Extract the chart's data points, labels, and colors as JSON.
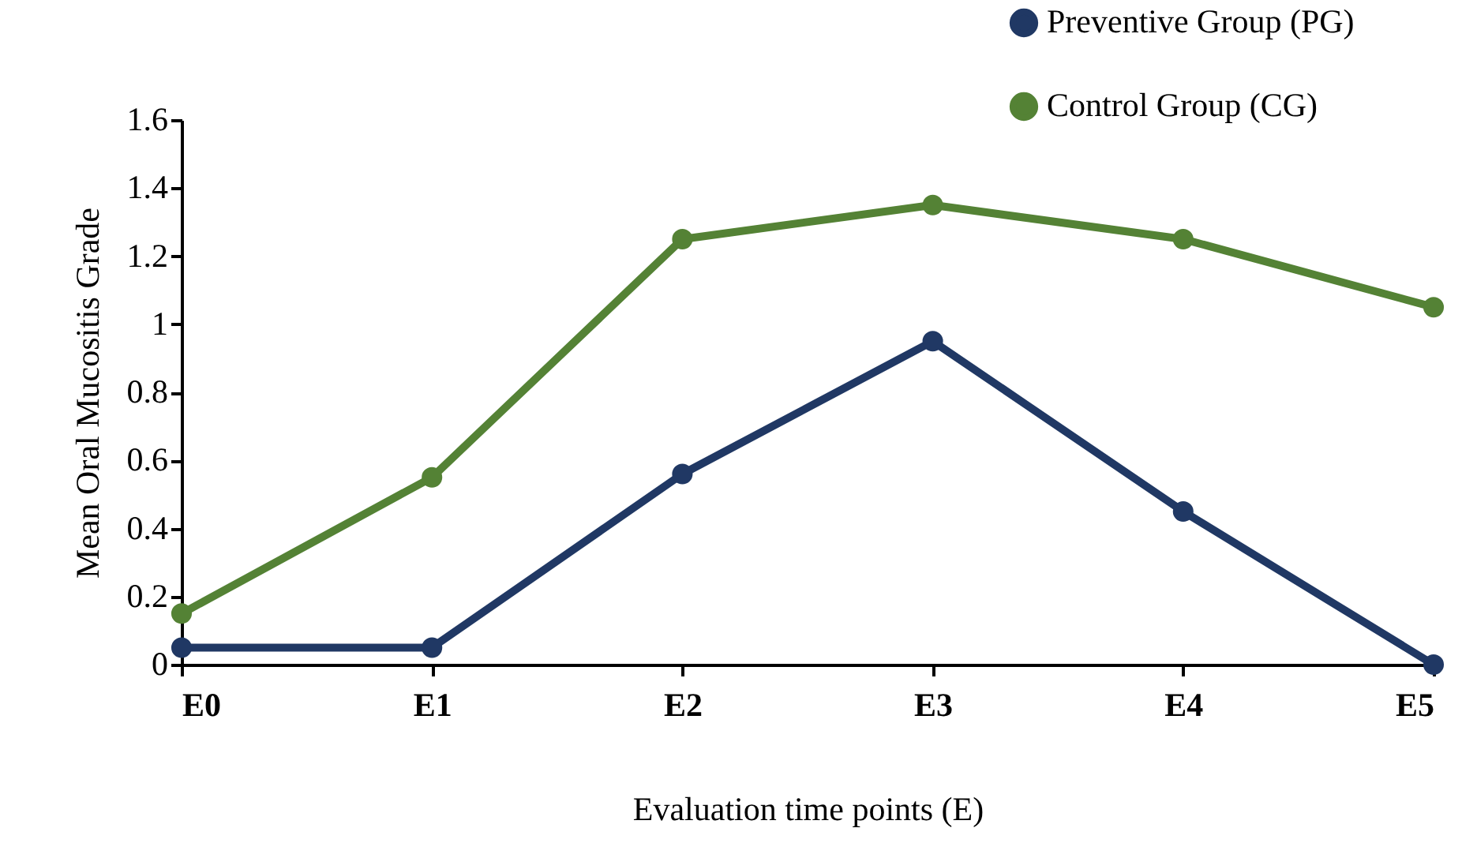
{
  "chart_data": {
    "type": "line",
    "xlabel": "Evaluation time points (E)",
    "ylabel": "Mean Oral Mucositis Grade",
    "categories": [
      "E0",
      "E1",
      "E2",
      "E3",
      "E4",
      "E5"
    ],
    "series": [
      {
        "name": "Preventive Group (PG)",
        "color": "#203864",
        "values": [
          0.05,
          0.05,
          0.56,
          0.95,
          0.45,
          0
        ]
      },
      {
        "name": "Control Group (CG)",
        "color": "#548235",
        "values": [
          0.15,
          0.55,
          1.25,
          1.35,
          1.25,
          1.05
        ]
      }
    ],
    "ylim": [
      0,
      1.6
    ],
    "yticks": [
      0,
      0.2,
      0.4,
      0.6,
      0.8,
      1,
      1.2,
      1.4,
      1.6
    ],
    "grid": false,
    "legend": "top right",
    "marker": "circle",
    "line_style": "solid"
  }
}
